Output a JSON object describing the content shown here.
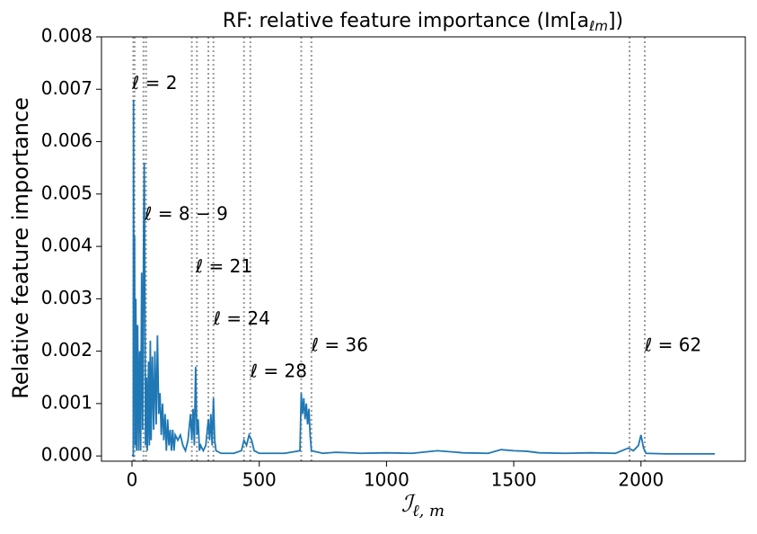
{
  "chart_data": {
    "type": "line",
    "title": [
      "RF: relative feature importance (Im[a",
      "ℓm",
      "])"
    ],
    "x_label": [
      "ℐ",
      "ℓ, m"
    ],
    "y_label": "Relative feature importance",
    "xlim": [
      -120,
      2410
    ],
    "ylim": [
      -0.0001,
      0.008
    ],
    "xticks": [
      0,
      500,
      1000,
      1500,
      2000
    ],
    "yticks": [
      {
        "value": 0,
        "label": "0.000"
      },
      {
        "value": 0.001,
        "label": "0.001"
      },
      {
        "value": 0.002,
        "label": "0.002"
      },
      {
        "value": 0.003,
        "label": "0.003"
      },
      {
        "value": 0.004,
        "label": "0.004"
      },
      {
        "value": 0.005,
        "label": "0.005"
      },
      {
        "value": 0.006,
        "label": "0.006"
      },
      {
        "value": 0.007,
        "label": "0.007"
      },
      {
        "value": 0.008,
        "label": "0.008"
      }
    ],
    "vlines": [
      5,
      10,
      45,
      55,
      235,
      255,
      300,
      320,
      440,
      465,
      665,
      705,
      1955,
      2015
    ],
    "annotations": [
      {
        "text": "ℓ = 2",
        "x": 0,
        "y": 0.0071
      },
      {
        "text": "ℓ = 8 − 9",
        "x": 50,
        "y": 0.0046
      },
      {
        "text": "ℓ = 21",
        "x": 250,
        "y": 0.0036
      },
      {
        "text": "ℓ = 24",
        "x": 320,
        "y": 0.0026
      },
      {
        "text": "ℓ = 28",
        "x": 465,
        "y": 0.0016
      },
      {
        "text": "ℓ = 36",
        "x": 705,
        "y": 0.0021
      },
      {
        "text": "ℓ = 62",
        "x": 2015,
        "y": 0.0021
      }
    ],
    "series": [
      {
        "color": "#1f77b4",
        "x": [
          0,
          5,
          6,
          8,
          10,
          12,
          15,
          18,
          22,
          26,
          30,
          34,
          38,
          42,
          46,
          48,
          50,
          53,
          57,
          60,
          65,
          68,
          72,
          75,
          80,
          85,
          90,
          95,
          100,
          105,
          110,
          115,
          120,
          125,
          130,
          135,
          140,
          145,
          150,
          155,
          160,
          165,
          170,
          180,
          190,
          200,
          210,
          220,
          230,
          235,
          240,
          245,
          250,
          255,
          260,
          265,
          270,
          280,
          290,
          300,
          305,
          310,
          315,
          320,
          325,
          330,
          350,
          400,
          430,
          440,
          450,
          460,
          470,
          480,
          500,
          600,
          660,
          665,
          670,
          675,
          680,
          685,
          690,
          695,
          700,
          705,
          750,
          800,
          900,
          1000,
          1100,
          1200,
          1250,
          1300,
          1400,
          1450,
          1500,
          1550,
          1600,
          1700,
          1800,
          1900,
          1950,
          1970,
          1990,
          2000,
          2010,
          2020,
          2100,
          2200,
          2290
        ],
        "values": [
          2e-05,
          0.0,
          0.0068,
          0.001,
          0.0042,
          0.0002,
          0.003,
          0.0001,
          0.0025,
          0.0001,
          0.002,
          0.0001,
          0.0035,
          0.0005,
          0.0045,
          0.0056,
          0.004,
          0.0002,
          0.0015,
          0.0001,
          0.0018,
          0.0002,
          0.0022,
          0.0003,
          0.0019,
          0.0005,
          0.002,
          0.0006,
          0.0023,
          0.0008,
          0.0012,
          0.0004,
          0.001,
          0.0003,
          0.0008,
          0.0001,
          0.0007,
          0.0002,
          0.0005,
          0.0001,
          0.0005,
          0.0001,
          0.0004,
          0.0003,
          0.0004,
          0.0002,
          0.0001,
          0.0003,
          0.0008,
          0.0003,
          0.0009,
          0.0002,
          0.0017,
          0.0004,
          0.0007,
          0.0001,
          0.0002,
          0.0001,
          0.0002,
          0.0007,
          0.0003,
          0.0008,
          0.0002,
          0.0011,
          0.0003,
          0.0001,
          5e-05,
          5e-05,
          0.0001,
          0.0003,
          0.0002,
          0.0004,
          0.0003,
          0.0001,
          5e-05,
          5e-05,
          0.0001,
          0.0012,
          0.0008,
          0.0011,
          0.0007,
          0.001,
          0.0006,
          0.0009,
          0.0004,
          0.0001,
          5e-05,
          7e-05,
          5e-05,
          6e-05,
          5e-05,
          0.0001,
          8e-05,
          6e-05,
          5e-05,
          0.00012,
          0.0001,
          9e-05,
          6e-05,
          5e-05,
          6e-05,
          5e-05,
          0.00015,
          0.0001,
          0.0002,
          0.0004,
          0.00015,
          5e-05,
          4e-05,
          4e-05,
          4e-05
        ]
      }
    ]
  }
}
